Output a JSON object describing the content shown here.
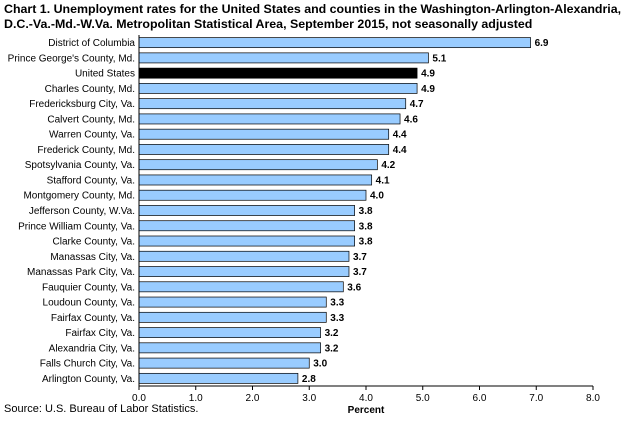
{
  "title": "Chart 1. Unemployment rates for the United States and counties in the Washington-Arlington-Alexandria, D.C.-Va.-Md.-W.Va. Metropolitan Statistical Area, September 2015, not seasonally adjusted",
  "source": "Source: U.S. Bureau of Labor Statistics.",
  "chart_data": {
    "type": "bar",
    "orientation": "horizontal",
    "title": "Chart 1. Unemployment rates for the United States and counties in the Washington-Arlington-Alexandria, D.C.-Va.-Md.-W.Va. Metropolitan Statistical Area, September 2015, not seasonally adjusted",
    "xlabel": "Percent",
    "ylabel": "",
    "xlim": [
      0,
      8
    ],
    "ticks": [
      0,
      1,
      2,
      3,
      4,
      5,
      6,
      7,
      8
    ],
    "tick_labels": [
      "0.0",
      "1.0",
      "2.0",
      "3.0",
      "4.0",
      "5.0",
      "6.0",
      "7.0",
      "8.0"
    ],
    "grid": false,
    "highlight_category": "United States",
    "bar_color": "#99ccff",
    "highlight_color": "#000000",
    "categories": [
      "District of Columbia",
      "Prince George's County, Md.",
      "United States",
      "Charles County, Md.",
      "Fredericksburg City, Va.",
      "Calvert County, Md.",
      "Warren County, Va.",
      "Frederick County, Md.",
      "Spotsylvania County, Va.",
      "Stafford County, Va.",
      "Montgomery County, Md.",
      "Jefferson County, W.Va.",
      "Prince William County, Va.",
      "Clarke County, Va.",
      "Manassas City, Va.",
      "Manassas Park City, Va.",
      "Fauquier County, Va.",
      "Loudoun County, Va.",
      "Fairfax County, Va.",
      "Fairfax City, Va.",
      "Alexandria City, Va.",
      "Falls Church City, Va.",
      "Arlington County, Va."
    ],
    "values": [
      6.9,
      5.1,
      4.9,
      4.9,
      4.7,
      4.6,
      4.4,
      4.4,
      4.2,
      4.1,
      4.0,
      3.8,
      3.8,
      3.8,
      3.7,
      3.7,
      3.6,
      3.3,
      3.3,
      3.2,
      3.2,
      3.0,
      2.8
    ],
    "value_labels": [
      "6.9",
      "5.1",
      "4.9",
      "4.9",
      "4.7",
      "4.6",
      "4.4",
      "4.4",
      "4.2",
      "4.1",
      "4.0",
      "3.8",
      "3.8",
      "3.8",
      "3.7",
      "3.7",
      "3.6",
      "3.3",
      "3.3",
      "3.2",
      "3.2",
      "3.0",
      "2.8"
    ]
  }
}
